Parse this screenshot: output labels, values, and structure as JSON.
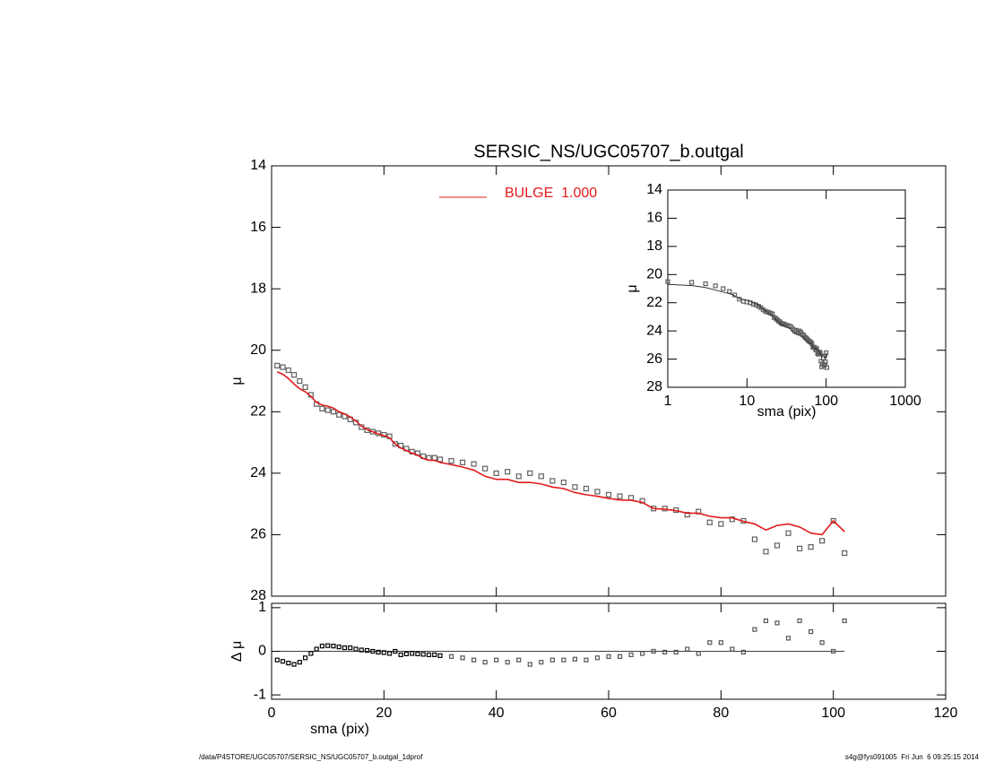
{
  "chart_data": [
    {
      "type": "line",
      "title": "SERSIC_NS/UGC05707_b.outgal",
      "ylabel": "μ",
      "xlim": [
        0,
        120
      ],
      "ylim": [
        28,
        14
      ],
      "yticks": [
        14,
        16,
        18,
        20,
        22,
        24,
        26,
        28
      ],
      "x": [
        1,
        2,
        3,
        4,
        5,
        6,
        7,
        8,
        9,
        10,
        11,
        12,
        13,
        14,
        15,
        16,
        17,
        18,
        19,
        20,
        21,
        22,
        23,
        24,
        25,
        26,
        27,
        28,
        29,
        30,
        32,
        34,
        36,
        38,
        40,
        42,
        44,
        46,
        48,
        50,
        52,
        54,
        56,
        58,
        60,
        62,
        64,
        66,
        68,
        70,
        72,
        74,
        76,
        78,
        80,
        82,
        84,
        86,
        88,
        90,
        92,
        94,
        96,
        98,
        100,
        102
      ],
      "points": {
        "color": "#606060",
        "values": [
          20.5,
          20.55,
          20.65,
          20.8,
          21.0,
          21.2,
          21.45,
          21.75,
          21.9,
          21.95,
          22.0,
          22.1,
          22.15,
          22.25,
          22.35,
          22.5,
          22.6,
          22.65,
          22.7,
          22.75,
          22.8,
          23.05,
          23.1,
          23.2,
          23.3,
          23.35,
          23.45,
          23.5,
          23.5,
          23.55,
          23.6,
          23.65,
          23.7,
          23.85,
          24.0,
          23.95,
          24.1,
          24.0,
          24.1,
          24.25,
          24.3,
          24.45,
          24.5,
          24.6,
          24.7,
          24.75,
          24.8,
          24.9,
          25.15,
          25.15,
          25.2,
          25.35,
          25.25,
          25.6,
          25.65,
          25.5,
          25.55,
          26.15,
          26.55,
          26.35,
          25.95,
          26.45,
          26.4,
          26.2,
          25.55,
          26.6
        ]
      },
      "series": [
        {
          "name": "BULGE  1.000",
          "color": "#e41a1c",
          "values": [
            20.7,
            20.78,
            20.92,
            21.1,
            21.25,
            21.35,
            21.5,
            21.7,
            21.78,
            21.82,
            21.88,
            22.0,
            22.07,
            22.17,
            22.3,
            22.47,
            22.58,
            22.65,
            22.72,
            22.78,
            22.85,
            23.05,
            23.18,
            23.26,
            23.35,
            23.41,
            23.52,
            23.58,
            23.58,
            23.65,
            23.72,
            23.8,
            23.9,
            24.1,
            24.2,
            24.2,
            24.3,
            24.3,
            24.35,
            24.45,
            24.5,
            24.63,
            24.7,
            24.75,
            24.82,
            24.87,
            24.88,
            24.95,
            25.15,
            25.17,
            25.22,
            25.3,
            25.3,
            25.4,
            25.45,
            25.45,
            25.57,
            25.65,
            25.85,
            25.7,
            25.65,
            25.75,
            25.95,
            26.0,
            25.55,
            25.9
          ]
        }
      ]
    },
    {
      "type": "scatter",
      "ylabel": "Δ μ",
      "xlabel": "sma (pix)",
      "xlim": [
        0,
        120
      ],
      "xticks": [
        0,
        20,
        40,
        60,
        80,
        100,
        120
      ],
      "ylim": [
        -1.1,
        1.1
      ],
      "yticks": [
        -1,
        0,
        1
      ],
      "color": "#000000",
      "values": [
        -0.2,
        -0.23,
        -0.27,
        -0.3,
        -0.25,
        -0.15,
        -0.05,
        0.05,
        0.12,
        0.13,
        0.12,
        0.1,
        0.08,
        0.08,
        0.05,
        0.03,
        0.02,
        0.0,
        -0.02,
        -0.03,
        -0.05,
        0.0,
        -0.08,
        -0.06,
        -0.05,
        -0.06,
        -0.07,
        -0.08,
        -0.08,
        -0.1,
        -0.12,
        -0.15,
        -0.2,
        -0.25,
        -0.2,
        -0.25,
        -0.2,
        -0.3,
        -0.25,
        -0.2,
        -0.2,
        -0.18,
        -0.2,
        -0.15,
        -0.12,
        -0.12,
        -0.08,
        -0.05,
        0.0,
        -0.02,
        -0.02,
        0.05,
        -0.05,
        0.2,
        0.2,
        0.05,
        -0.02,
        0.5,
        0.7,
        0.65,
        0.3,
        0.7,
        0.45,
        0.2,
        0.0,
        0.7
      ]
    },
    {
      "type": "scatter",
      "xlabel": "sma (pix)",
      "ylabel": "μ",
      "log_x": true,
      "xlim": [
        1,
        1000
      ],
      "xticks": [
        1,
        10,
        100,
        1000
      ],
      "ylim": [
        28,
        14
      ],
      "yticks": [
        14,
        16,
        18,
        20,
        22,
        24,
        26,
        28
      ]
    }
  ],
  "footer": {
    "left": "/data/P4STORE/UGC05707/SERSIC_NS/UGC05707_b.outgal_1dprof",
    "right": "s4g@fys091005  Fri Jun  6 09:25:15 2014"
  }
}
